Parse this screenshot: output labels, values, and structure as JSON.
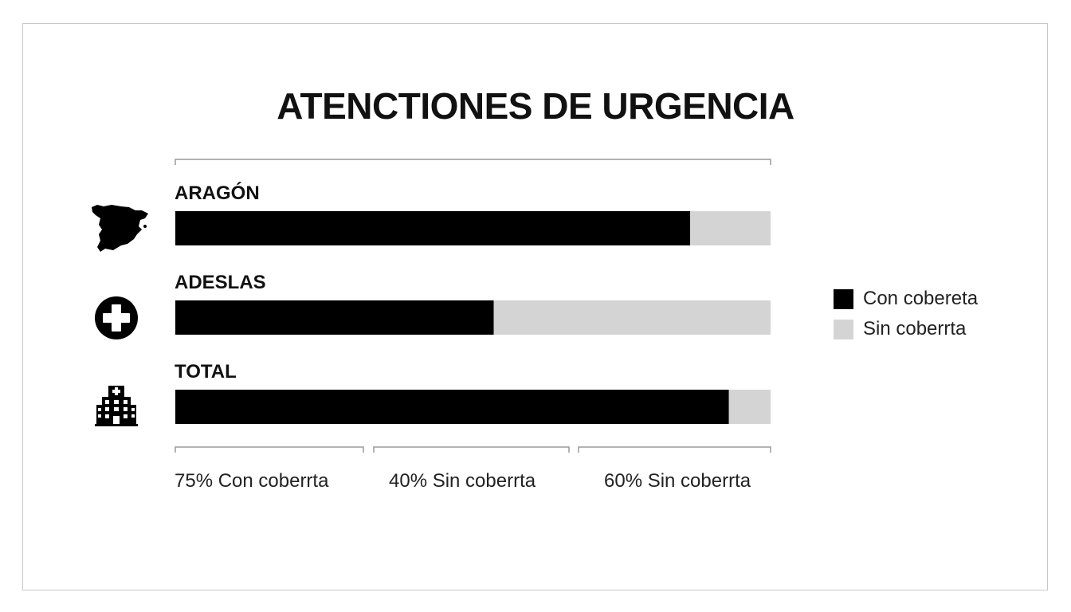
{
  "chart_data": {
    "type": "bar",
    "orientation": "horizontal",
    "stacked": true,
    "title": "ATENCTIONES DE URGENCIA",
    "categories": [
      "ARAGÓN",
      "ADESLAS",
      "TOTAL"
    ],
    "category_icons": [
      "spain-map-icon",
      "medical-cross-icon",
      "hospital-icon"
    ],
    "series": [
      {
        "name": "Con cobereta",
        "color": "#000000",
        "values": [
          86.5,
          53.5,
          93
        ]
      },
      {
        "name": "Sin coberrta",
        "color": "#d4d4d4",
        "values": [
          13.5,
          46.5,
          7
        ]
      }
    ],
    "xlim": [
      0,
      100
    ],
    "legend_position": "right",
    "annotations": [
      "75% Con coberrta",
      "40% Sin coberrta",
      "60% Sin coberrta"
    ]
  }
}
